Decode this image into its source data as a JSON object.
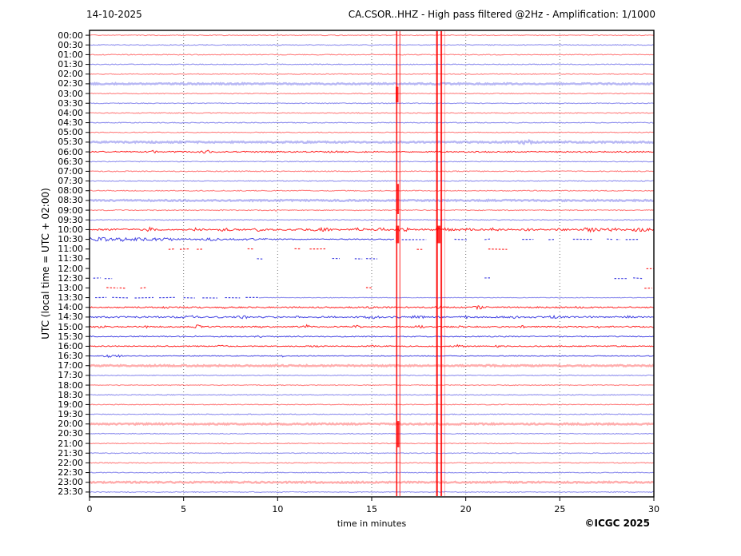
{
  "header": {
    "date": "14-10-2025",
    "title": "CA.CSOR..HHZ - High pass filtered @2Hz - Amplification: 1/1000"
  },
  "axes": {
    "y_label": "UTC (local time = UTC + 02:00)",
    "x_label": "time in minutes"
  },
  "footer": {
    "copyright": "©ICGC 2025"
  },
  "colors": {
    "trace_red": "#ff0000",
    "trace_blue": "#2222dd",
    "grid": "#777777",
    "frame": "#000000"
  },
  "chart_data": {
    "type": "line",
    "subtype": "helicorder-seismogram",
    "title": "CA.CSOR..HHZ - High pass filtered @2Hz - Amplification: 1/1000",
    "date": "14-10-2025",
    "xlabel": "time in minutes",
    "ylabel": "UTC (local time = UTC + 02:00)",
    "x_range": [
      0,
      30
    ],
    "x_ticks": [
      0,
      5,
      10,
      15,
      20,
      25,
      30
    ],
    "grid_minutes": [
      5,
      10,
      15,
      20,
      25
    ],
    "minutes_per_row": 30,
    "rows": [
      {
        "t": "00:00",
        "c": "r",
        "a": "flat",
        "amp": 0.5
      },
      {
        "t": "00:30",
        "c": "b",
        "a": "flat",
        "amp": 0.5
      },
      {
        "t": "01:00",
        "c": "r",
        "a": "flat",
        "amp": 0.5
      },
      {
        "t": "01:30",
        "c": "b",
        "a": "flat",
        "amp": 0.5
      },
      {
        "t": "02:00",
        "c": "r",
        "a": "flat",
        "amp": 0.5
      },
      {
        "t": "02:30",
        "c": "b",
        "a": "thick",
        "amp": 0.9
      },
      {
        "t": "03:00",
        "c": "r",
        "a": "flat",
        "amp": 0.5
      },
      {
        "t": "03:30",
        "c": "b",
        "a": "flat",
        "amp": 0.5
      },
      {
        "t": "04:00",
        "c": "r",
        "a": "flat",
        "amp": 0.5
      },
      {
        "t": "04:30",
        "c": "b",
        "a": "flat",
        "amp": 0.5
      },
      {
        "t": "05:00",
        "c": "r",
        "a": "flat",
        "amp": 0.5
      },
      {
        "t": "05:30",
        "c": "b",
        "a": "thick",
        "amp": 0.9,
        "bursts": [
          [
            23.2,
            2.2,
            0.5
          ]
        ]
      },
      {
        "t": "06:00",
        "c": "r",
        "a": "noisy",
        "segs": [
          [
            0,
            30,
            0.8
          ]
        ],
        "bursts": [
          [
            3.4,
            1.2,
            0.2
          ],
          [
            6.3,
            2.0,
            0.5
          ],
          [
            13.0,
            1.0,
            0.3
          ],
          [
            18.0,
            0.8,
            0.3
          ]
        ]
      },
      {
        "t": "06:30",
        "c": "b",
        "a": "flat",
        "amp": 0.5
      },
      {
        "t": "07:00",
        "c": "r",
        "a": "flat",
        "amp": 0.6
      },
      {
        "t": "07:30",
        "c": "b",
        "a": "flat",
        "amp": 0.5
      },
      {
        "t": "08:00",
        "c": "r",
        "a": "flat",
        "amp": 0.6
      },
      {
        "t": "08:30",
        "c": "b",
        "a": "thick",
        "amp": 0.9
      },
      {
        "t": "09:00",
        "c": "r",
        "a": "flat",
        "amp": 0.6,
        "bursts": [
          [
            10.0,
            0.8,
            0.3
          ]
        ]
      },
      {
        "t": "09:30",
        "c": "b",
        "a": "flat",
        "amp": 0.5
      },
      {
        "t": "10:00",
        "c": "r",
        "a": "noisy",
        "segs": [
          [
            0,
            30,
            1.0
          ]
        ],
        "bursts": [
          [
            3.2,
            2.2,
            0.3
          ],
          [
            5.6,
            1.2,
            0.4
          ],
          [
            7.2,
            1.4,
            0.5
          ],
          [
            9.0,
            1.3,
            0.3
          ],
          [
            12.4,
            1.6,
            0.7
          ],
          [
            14.3,
            1.3,
            0.4
          ],
          [
            15.6,
            1.8,
            0.5
          ],
          [
            16.7,
            2.2,
            0.4
          ],
          [
            18.8,
            2.8,
            0.7
          ],
          [
            20.0,
            1.5,
            0.4
          ],
          [
            21.5,
            1.4,
            0.3
          ],
          [
            23.4,
            1.4,
            0.3
          ],
          [
            25.0,
            1.2,
            0.3
          ],
          [
            26.6,
            1.8,
            0.8
          ],
          [
            27.8,
            1.5,
            0.4
          ],
          [
            29.2,
            1.9,
            0.8
          ]
        ]
      },
      {
        "t": "10:30",
        "c": "b",
        "a": "noisy",
        "segs": [
          [
            0,
            4.5,
            1.8
          ],
          [
            4.5,
            9.5,
            1.1
          ],
          [
            9.5,
            16.2,
            0.7
          ]
        ],
        "bursts": [
          [
            0.5,
            1.5,
            0.5
          ],
          [
            2.0,
            1.0,
            0.8
          ],
          [
            6.5,
            0.8,
            0.5
          ]
        ],
        "dash": [
          [
            16.6,
            17.9
          ],
          [
            19.4,
            20.1
          ],
          [
            21.0,
            21.3
          ],
          [
            23.0,
            23.6
          ],
          [
            24.4,
            24.7
          ],
          [
            25.7,
            26.7
          ],
          [
            27.5,
            27.8
          ],
          [
            28.0,
            28.2
          ],
          [
            28.5,
            29.2
          ]
        ]
      },
      {
        "t": "11:00",
        "c": "r",
        "a": "dash",
        "dash": [
          [
            4.2,
            4.5
          ],
          [
            4.8,
            5.3
          ],
          [
            5.7,
            6.0
          ],
          [
            8.4,
            8.7
          ],
          [
            10.9,
            11.2
          ],
          [
            11.7,
            12.6
          ],
          [
            17.4,
            17.7
          ],
          [
            21.2,
            22.2
          ]
        ]
      },
      {
        "t": "11:30",
        "c": "b",
        "a": "dash",
        "dash": [
          [
            8.9,
            9.2
          ],
          [
            12.9,
            13.3
          ],
          [
            14.1,
            14.5
          ],
          [
            14.7,
            15.3
          ]
        ]
      },
      {
        "t": "12:00",
        "c": "r",
        "a": "dash",
        "dash": [
          [
            29.6,
            30.0
          ]
        ]
      },
      {
        "t": "12:30",
        "c": "b",
        "a": "dash",
        "dash": [
          [
            0.2,
            0.6
          ],
          [
            0.8,
            1.2
          ],
          [
            21.0,
            21.3
          ],
          [
            27.9,
            28.6
          ],
          [
            28.9,
            29.4
          ]
        ]
      },
      {
        "t": "13:00",
        "c": "r",
        "a": "dash",
        "dash": [
          [
            0.9,
            1.5
          ],
          [
            1.6,
            1.9
          ],
          [
            2.7,
            3.0
          ],
          [
            14.7,
            15.0
          ],
          [
            29.5,
            29.9
          ]
        ]
      },
      {
        "t": "13:30",
        "c": "b",
        "a": "dash",
        "dash": [
          [
            0.3,
            0.9
          ],
          [
            1.2,
            2.1
          ],
          [
            2.4,
            3.4
          ],
          [
            3.7,
            4.6
          ],
          [
            5.0,
            5.6
          ],
          [
            6.0,
            6.8
          ],
          [
            7.2,
            8.0
          ],
          [
            8.3,
            9.0
          ]
        ],
        "segs": [
          [
            9,
            30,
            0.35
          ]
        ]
      },
      {
        "t": "14:00",
        "c": "r",
        "a": "noisy",
        "segs": [
          [
            0,
            30,
            0.85
          ]
        ],
        "bursts": [
          [
            4.0,
            1.2,
            0.2
          ],
          [
            7.1,
            1.0,
            0.2
          ],
          [
            10.4,
            1.3,
            0.2
          ],
          [
            14.9,
            1.4,
            0.2
          ],
          [
            18.6,
            1.2,
            0.3
          ],
          [
            20.7,
            2.0,
            0.5
          ],
          [
            26.0,
            1.0,
            0.3
          ]
        ]
      },
      {
        "t": "14:30",
        "c": "b",
        "a": "noisy",
        "segs": [
          [
            0,
            30,
            1.0
          ]
        ],
        "bursts": [
          [
            1.0,
            2.4,
            0.15
          ],
          [
            5.2,
            1.4,
            0.7
          ],
          [
            8.3,
            1.4,
            0.5
          ],
          [
            11.0,
            1.2,
            0.2
          ],
          [
            15.0,
            1.4,
            0.5
          ],
          [
            17.5,
            1.4,
            0.5
          ],
          [
            20.0,
            1.2,
            0.2
          ],
          [
            22.6,
            1.2,
            0.2
          ],
          [
            24.6,
            1.4,
            0.3
          ],
          [
            28.6,
            1.1,
            0.2
          ]
        ]
      },
      {
        "t": "15:00",
        "c": "r",
        "a": "noisy",
        "segs": [
          [
            0,
            30,
            0.85
          ]
        ],
        "bursts": [
          [
            0.7,
            1.4,
            0.3
          ],
          [
            3.0,
            1.2,
            0.2
          ],
          [
            5.7,
            1.7,
            0.4
          ],
          [
            9.0,
            1.0,
            0.2
          ],
          [
            11.5,
            2.0,
            0.3
          ],
          [
            14.2,
            1.4,
            0.3
          ],
          [
            17.5,
            1.1,
            0.4
          ],
          [
            19.7,
            1.1,
            0.2
          ],
          [
            23.0,
            1.1,
            0.2
          ],
          [
            27.0,
            1.1,
            0.2
          ]
        ]
      },
      {
        "t": "15:30",
        "c": "b",
        "a": "noisy",
        "segs": [
          [
            0,
            30,
            0.65
          ]
        ],
        "bursts": [
          [
            5.5,
            1.2,
            0.2
          ],
          [
            9.0,
            0.9,
            0.3
          ],
          [
            11.2,
            2.8,
            0.12
          ]
        ]
      },
      {
        "t": "16:00",
        "c": "r",
        "a": "noisy",
        "segs": [
          [
            0,
            30,
            0.65
          ]
        ],
        "bursts": [
          [
            7.0,
            1.1,
            0.4
          ],
          [
            12.0,
            0.9,
            0.3
          ],
          [
            15.0,
            1.1,
            0.2
          ],
          [
            19.5,
            1.4,
            0.5
          ],
          [
            21.7,
            1.2,
            0.2
          ],
          [
            25.0,
            0.9,
            0.2
          ]
        ]
      },
      {
        "t": "16:30",
        "c": "b",
        "a": "noisy",
        "segs": [
          [
            0,
            30,
            0.5
          ]
        ],
        "bursts": [
          [
            1.2,
            1.7,
            0.8
          ],
          [
            10.3,
            1.1,
            0.15
          ]
        ]
      },
      {
        "t": "17:00",
        "c": "r",
        "a": "thick",
        "amp": 0.9
      },
      {
        "t": "17:30",
        "c": "b",
        "a": "flat",
        "amp": 0.5
      },
      {
        "t": "18:00",
        "c": "r",
        "a": "flat",
        "amp": 0.5
      },
      {
        "t": "18:30",
        "c": "b",
        "a": "flat",
        "amp": 0.5
      },
      {
        "t": "19:00",
        "c": "r",
        "a": "flat",
        "amp": 0.5
      },
      {
        "t": "19:30",
        "c": "b",
        "a": "flat",
        "amp": 0.5
      },
      {
        "t": "20:00",
        "c": "r",
        "a": "thick",
        "amp": 0.9
      },
      {
        "t": "20:30",
        "c": "b",
        "a": "flat",
        "amp": 0.5
      },
      {
        "t": "21:00",
        "c": "r",
        "a": "flat",
        "amp": 0.5
      },
      {
        "t": "21:30",
        "c": "b",
        "a": "flat",
        "amp": 0.5
      },
      {
        "t": "22:00",
        "c": "r",
        "a": "flat",
        "amp": 0.5
      },
      {
        "t": "22:30",
        "c": "b",
        "a": "flat",
        "amp": 0.5
      },
      {
        "t": "23:00",
        "c": "r",
        "a": "thick",
        "amp": 0.9
      },
      {
        "t": "23:30",
        "c": "b",
        "a": "flat",
        "amp": 0.5
      }
    ],
    "event_spikes": [
      {
        "min": 16.33,
        "w": 1.6,
        "o": 0.9
      },
      {
        "min": 16.5,
        "w": 1.1,
        "o": 0.75
      },
      {
        "min": 18.47,
        "w": 2.0,
        "o": 0.95
      },
      {
        "min": 18.7,
        "w": 2.0,
        "o": 0.85
      },
      {
        "min": 18.88,
        "w": 0.8,
        "o": 0.4
      }
    ],
    "spike_wide_sections": [
      {
        "min": 16.35,
        "u0": 5.8,
        "u1": 7.4,
        "w": 3.5
      },
      {
        "min": 16.38,
        "u0": 15.8,
        "u1": 18.9,
        "w": 3.2
      },
      {
        "min": 16.37,
        "u0": 20.1,
        "u1": 21.9,
        "w": 4.0
      },
      {
        "min": 18.55,
        "u0": 20.1,
        "u1": 21.9,
        "w": 5.0
      },
      {
        "min": 16.4,
        "u0": 40.2,
        "u1": 42.9,
        "w": 3.2
      }
    ]
  }
}
